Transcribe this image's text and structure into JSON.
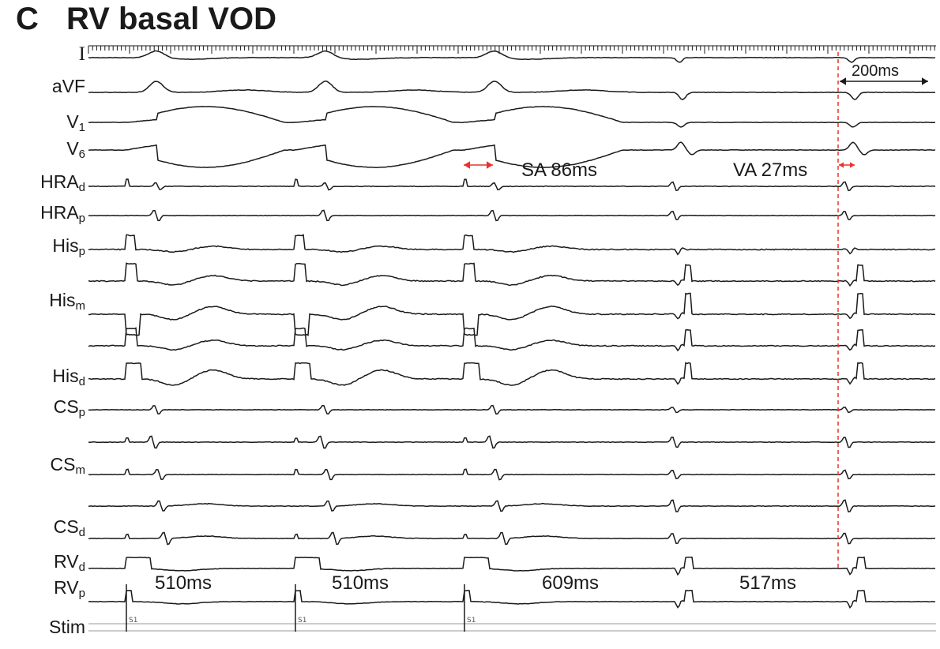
{
  "panel": {
    "letter": "C",
    "title": "RV basal VOD"
  },
  "leads": [
    {
      "id": "I",
      "base": "I",
      "sub": ""
    },
    {
      "id": "aVF",
      "base": "aVF",
      "sub": ""
    },
    {
      "id": "V1",
      "base": "V",
      "sub": "1"
    },
    {
      "id": "V6",
      "base": "V",
      "sub": "6"
    },
    {
      "id": "HRAd",
      "base": "HRA",
      "sub": "d"
    },
    {
      "id": "HRAp",
      "base": "HRA",
      "sub": "p"
    },
    {
      "id": "Hisp",
      "base": "His",
      "sub": "p"
    },
    {
      "id": "Hism",
      "base": "His",
      "sub": "m"
    },
    {
      "id": "Hisd",
      "base": "His",
      "sub": "d"
    },
    {
      "id": "CSp",
      "base": "CS",
      "sub": "p"
    },
    {
      "id": "CSm",
      "base": "CS",
      "sub": "m"
    },
    {
      "id": "CSd",
      "base": "CS",
      "sub": "d"
    },
    {
      "id": "RVd",
      "base": "RV",
      "sub": "d"
    },
    {
      "id": "RVp",
      "base": "RV",
      "sub": "p"
    },
    {
      "id": "Stim",
      "base": "Stim",
      "sub": ""
    }
  ],
  "annotations": {
    "sa": "SA 86ms",
    "va": "VA 27ms",
    "scale_bar": "200ms",
    "intervals": [
      "510ms",
      "510ms",
      "609ms",
      "517ms"
    ],
    "stim_marks": [
      "S1",
      "S1",
      "S1"
    ]
  },
  "colors": {
    "trace": "#1a1a1a",
    "marker": "#e8342c",
    "grid": "#9a9a9a"
  }
}
